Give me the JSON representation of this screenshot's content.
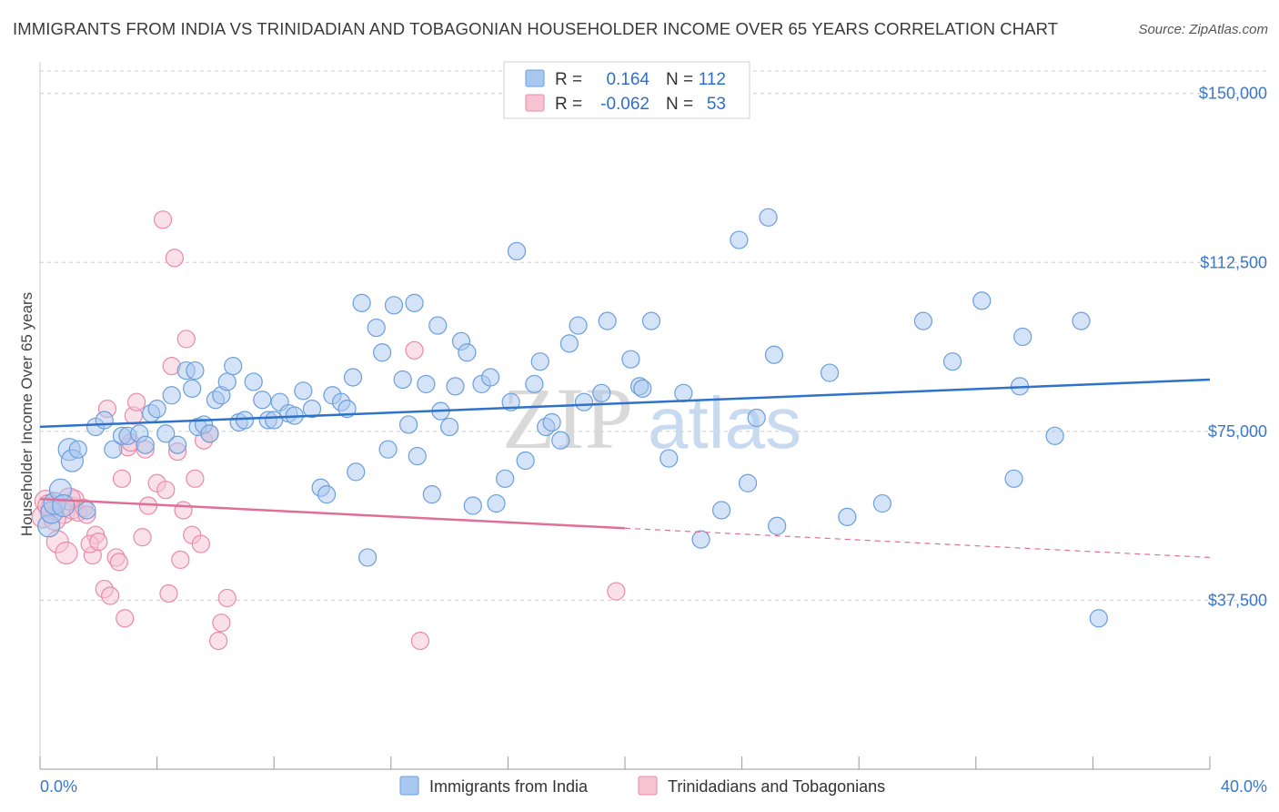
{
  "title": "IMMIGRANTS FROM INDIA VS TRINIDADIAN AND TOBAGONIAN HOUSEHOLDER INCOME OVER 65 YEARS CORRELATION CHART",
  "source": "Source: ZipAtlas.com",
  "watermark": {
    "part1": "ZIP",
    "part2": "atlas"
  },
  "stats": {
    "row1": {
      "r_label": "R =",
      "r_value": "0.164",
      "n_label": "N =",
      "n_value": "112"
    },
    "row2": {
      "r_label": "R =",
      "r_value": "-0.062",
      "n_label": "N =",
      "n_value": "53"
    }
  },
  "colors": {
    "blue_fill": "#a9c8ef",
    "blue_stroke": "#6a9fdc",
    "blue_line": "#2f72c9",
    "pink_fill": "#f6c3d3",
    "pink_stroke": "#e98aa8",
    "pink_line": "#e06f98",
    "grid": "#cccccc",
    "axis": "#999999"
  },
  "chart_data": {
    "type": "scatter",
    "title": "IMMIGRANTS FROM INDIA VS TRINIDADIAN AND TOBAGONIAN HOUSEHOLDER INCOME OVER 65 YEARS CORRELATION CHART",
    "xlabel": "",
    "ylabel": "Householder Income Over 65 years",
    "xlim": [
      0,
      40
    ],
    "ylim": [
      0,
      155000
    ],
    "x_tick_labels": [
      "0.0%",
      "40.0%"
    ],
    "y_ticks": [
      37500,
      75000,
      112500,
      150000
    ],
    "y_tick_labels": [
      "$37,500",
      "$75,000",
      "$112,500",
      "$150,000"
    ],
    "grid": "horizontal dashed",
    "legend_position": "bottom",
    "series": [
      {
        "name": "Immigrants from India",
        "color": "#a9c8ef",
        "trend": {
          "x0": 0,
          "y0": 76000,
          "x1": 40,
          "y1": 86500
        },
        "points": [
          [
            0.3,
            54000
          ],
          [
            0.4,
            57000
          ],
          [
            0.5,
            59000
          ],
          [
            0.7,
            62000
          ],
          [
            0.8,
            58500
          ],
          [
            1.0,
            71000
          ],
          [
            1.1,
            68500
          ],
          [
            1.3,
            71000
          ],
          [
            1.6,
            57500
          ],
          [
            1.9,
            76000
          ],
          [
            2.2,
            77500
          ],
          [
            2.5,
            71000
          ],
          [
            2.8,
            74000
          ],
          [
            3.0,
            74000
          ],
          [
            3.4,
            74500
          ],
          [
            3.8,
            79000
          ],
          [
            3.6,
            72000
          ],
          [
            4.0,
            80000
          ],
          [
            4.3,
            74500
          ],
          [
            4.5,
            83000
          ],
          [
            4.7,
            72000
          ],
          [
            5.0,
            88500
          ],
          [
            5.2,
            84500
          ],
          [
            5.3,
            88500
          ],
          [
            5.4,
            76000
          ],
          [
            5.6,
            76500
          ],
          [
            5.8,
            74500
          ],
          [
            6.0,
            82000
          ],
          [
            6.2,
            83000
          ],
          [
            6.4,
            86000
          ],
          [
            6.6,
            89500
          ],
          [
            6.8,
            77000
          ],
          [
            7.0,
            77500
          ],
          [
            7.3,
            86000
          ],
          [
            7.6,
            82000
          ],
          [
            7.8,
            77500
          ],
          [
            8.0,
            77500
          ],
          [
            8.2,
            81500
          ],
          [
            8.5,
            79000
          ],
          [
            8.7,
            78500
          ],
          [
            9.0,
            84000
          ],
          [
            9.3,
            80000
          ],
          [
            9.6,
            62500
          ],
          [
            9.8,
            61000
          ],
          [
            10.0,
            83000
          ],
          [
            10.3,
            81500
          ],
          [
            10.5,
            80000
          ],
          [
            10.7,
            87000
          ],
          [
            10.8,
            66000
          ],
          [
            11.0,
            103500
          ],
          [
            11.2,
            47000
          ],
          [
            11.5,
            98000
          ],
          [
            11.7,
            92500
          ],
          [
            11.9,
            71000
          ],
          [
            12.1,
            103000
          ],
          [
            12.4,
            86500
          ],
          [
            12.6,
            76500
          ],
          [
            12.8,
            103500
          ],
          [
            12.9,
            69500
          ],
          [
            13.2,
            85500
          ],
          [
            13.4,
            61000
          ],
          [
            13.6,
            98500
          ],
          [
            13.7,
            79500
          ],
          [
            14.0,
            76000
          ],
          [
            14.2,
            85000
          ],
          [
            14.4,
            95000
          ],
          [
            14.6,
            92500
          ],
          [
            14.8,
            58500
          ],
          [
            15.1,
            85500
          ],
          [
            15.4,
            87000
          ],
          [
            15.6,
            59000
          ],
          [
            15.9,
            64500
          ],
          [
            16.1,
            81500
          ],
          [
            16.3,
            115000
          ],
          [
            16.6,
            68500
          ],
          [
            16.9,
            85500
          ],
          [
            17.1,
            90500
          ],
          [
            17.3,
            76000
          ],
          [
            17.5,
            77000
          ],
          [
            17.8,
            73000
          ],
          [
            18.1,
            94500
          ],
          [
            18.4,
            98500
          ],
          [
            18.6,
            81500
          ],
          [
            19.2,
            83500
          ],
          [
            19.4,
            99500
          ],
          [
            20.2,
            91000
          ],
          [
            20.5,
            85000
          ],
          [
            20.6,
            84500
          ],
          [
            20.9,
            99500
          ],
          [
            21.5,
            69000
          ],
          [
            22.0,
            83500
          ],
          [
            22.6,
            51000
          ],
          [
            23.3,
            57500
          ],
          [
            23.9,
            117500
          ],
          [
            24.2,
            63500
          ],
          [
            24.5,
            78000
          ],
          [
            24.9,
            122500
          ],
          [
            25.1,
            92000
          ],
          [
            25.2,
            54000
          ],
          [
            27.0,
            88000
          ],
          [
            27.6,
            56000
          ],
          [
            28.8,
            59000
          ],
          [
            30.2,
            99500
          ],
          [
            31.2,
            90500
          ],
          [
            32.2,
            104000
          ],
          [
            33.3,
            64500
          ],
          [
            33.5,
            85000
          ],
          [
            33.6,
            96000
          ],
          [
            34.7,
            74000
          ],
          [
            35.6,
            99500
          ],
          [
            36.2,
            33500
          ]
        ]
      },
      {
        "name": "Trinidadians and Tobagonians",
        "color": "#f6c3d3",
        "trend": {
          "x0": 0,
          "y0": 60000,
          "x1": 40,
          "y1": 47000,
          "solid_until_x": 20
        },
        "points": [
          [
            0.1,
            56000
          ],
          [
            0.2,
            59500
          ],
          [
            0.4,
            58000
          ],
          [
            0.6,
            50500
          ],
          [
            0.8,
            57000
          ],
          [
            0.9,
            48000
          ],
          [
            1.1,
            58000
          ],
          [
            1.2,
            60000
          ],
          [
            1.3,
            57000
          ],
          [
            1.5,
            58000
          ],
          [
            1.6,
            56500
          ],
          [
            1.8,
            47500
          ],
          [
            1.9,
            52000
          ],
          [
            1.7,
            50000
          ],
          [
            2.0,
            50500
          ],
          [
            2.2,
            40000
          ],
          [
            2.3,
            80000
          ],
          [
            2.4,
            38500
          ],
          [
            2.6,
            47000
          ],
          [
            2.7,
            46000
          ],
          [
            2.8,
            64500
          ],
          [
            2.9,
            33500
          ],
          [
            3.0,
            71500
          ],
          [
            3.1,
            72500
          ],
          [
            3.2,
            78500
          ],
          [
            3.3,
            81500
          ],
          [
            3.5,
            51500
          ],
          [
            3.6,
            71000
          ],
          [
            3.7,
            58500
          ],
          [
            4.0,
            63500
          ],
          [
            4.2,
            122000
          ],
          [
            4.3,
            62000
          ],
          [
            4.4,
            39000
          ],
          [
            4.5,
            89500
          ],
          [
            4.6,
            113500
          ],
          [
            4.7,
            70500
          ],
          [
            4.8,
            46500
          ],
          [
            4.9,
            57500
          ],
          [
            5.0,
            95500
          ],
          [
            5.2,
            52000
          ],
          [
            5.3,
            64500
          ],
          [
            5.5,
            50000
          ],
          [
            5.6,
            73000
          ],
          [
            5.8,
            74500
          ],
          [
            6.1,
            28500
          ],
          [
            6.2,
            32500
          ],
          [
            6.4,
            38000
          ],
          [
            12.8,
            93000
          ],
          [
            13.0,
            28500
          ],
          [
            19.7,
            39500
          ],
          [
            1.0,
            60000
          ],
          [
            0.5,
            55500
          ],
          [
            0.3,
            58500
          ]
        ]
      }
    ]
  },
  "legend": {
    "item1": "Immigrants from India",
    "item2": "Trinidadians and Tobagonians"
  }
}
